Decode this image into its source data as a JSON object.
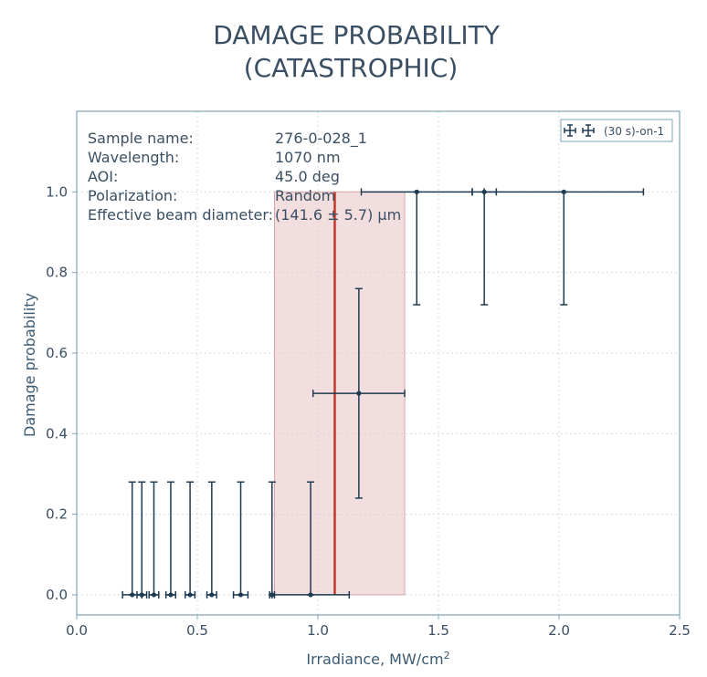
{
  "chart_data": {
    "type": "scatter",
    "title_line1": "DAMAGE PROBABILITY",
    "title_line2": "(CATASTROPHIC)",
    "xlabel": "Irradiance, MW/cm",
    "xlabel_sup": "2",
    "ylabel": "Damage probability",
    "xlim": [
      0.0,
      2.5
    ],
    "ylim": [
      -0.05,
      1.2
    ],
    "xticks": [
      "0.0",
      "0.5",
      "1.0",
      "1.5",
      "2.0",
      "2.5"
    ],
    "yticks": [
      "0.0",
      "0.2",
      "0.4",
      "0.6",
      "0.8",
      "1.0"
    ],
    "grid": true,
    "legend_position": "top-right",
    "series": [
      {
        "name": "(30 s)-on-1",
        "color": "#1d3a52",
        "points": [
          {
            "x": 0.23,
            "y": 0.0,
            "xerr": 0.04,
            "yerr_low": 0.0,
            "yerr_high": 0.28
          },
          {
            "x": 0.27,
            "y": 0.0,
            "xerr": 0.02,
            "yerr_low": 0.0,
            "yerr_high": 0.28
          },
          {
            "x": 0.32,
            "y": 0.0,
            "xerr": 0.02,
            "yerr_low": 0.0,
            "yerr_high": 0.28
          },
          {
            "x": 0.39,
            "y": 0.0,
            "xerr": 0.02,
            "yerr_low": 0.0,
            "yerr_high": 0.28
          },
          {
            "x": 0.47,
            "y": 0.0,
            "xerr": 0.02,
            "yerr_low": 0.0,
            "yerr_high": 0.28
          },
          {
            "x": 0.56,
            "y": 0.0,
            "xerr": 0.02,
            "yerr_low": 0.0,
            "yerr_high": 0.28
          },
          {
            "x": 0.68,
            "y": 0.0,
            "xerr": 0.03,
            "yerr_low": 0.0,
            "yerr_high": 0.28
          },
          {
            "x": 0.81,
            "y": 0.0,
            "xerr": 0.01,
            "yerr_low": 0.0,
            "yerr_high": 0.28
          },
          {
            "x": 0.97,
            "y": 0.0,
            "xerr": 0.16,
            "yerr_low": 0.0,
            "yerr_high": 0.28
          },
          {
            "x": 1.17,
            "y": 0.5,
            "xerr": 0.19,
            "yerr_low": 0.26,
            "yerr_high": 0.26
          },
          {
            "x": 1.41,
            "y": 1.0,
            "xerr": 0.23,
            "yerr_low": 0.28,
            "yerr_high": 0.0
          },
          {
            "x": 1.69,
            "y": 1.0,
            "xerr": 0.05,
            "yerr_low": 0.28,
            "yerr_high": 0.0
          },
          {
            "x": 2.02,
            "y": 1.0,
            "xerr": 0.33,
            "yerr_low": 0.28,
            "yerr_high": 0.0
          }
        ]
      }
    ],
    "threshold": {
      "x": 1.07,
      "x_low": 0.82,
      "x_high": 1.36,
      "y_top": 1.0,
      "color": "#c0392b"
    },
    "info": [
      {
        "label": "Sample name:",
        "value": "276-0-028_1"
      },
      {
        "label": "Wavelength:",
        "value": "1070 nm"
      },
      {
        "label": "AOI:",
        "value": "45.0 deg"
      },
      {
        "label": "Polarization:",
        "value": "Random"
      },
      {
        "label": "Effective beam diameter:",
        "value": "(141.6 ± 5.7) μm"
      }
    ]
  }
}
